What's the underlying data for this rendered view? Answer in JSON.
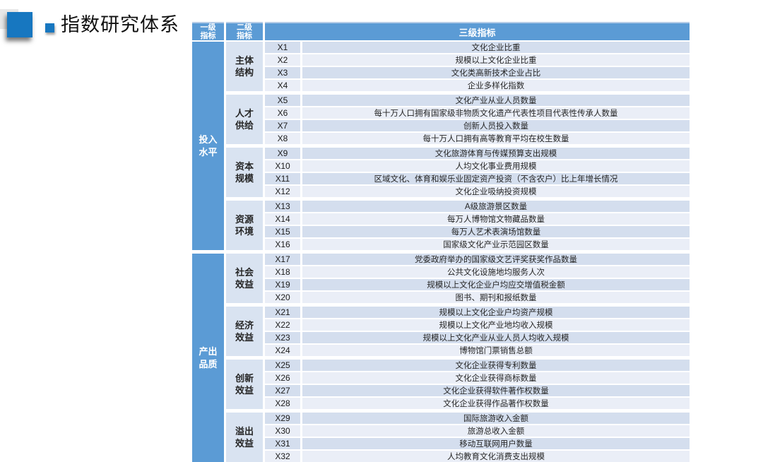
{
  "title": {
    "text": "指数研究体系"
  },
  "table": {
    "headers": [
      "一级\n指标",
      "二级\n指标",
      "三级指标"
    ],
    "sections": [
      {
        "level1": "投入\n水平",
        "groups": [
          {
            "level2": "主体\n结构",
            "items": [
              {
                "code": "X1",
                "name": "文化企业比重"
              },
              {
                "code": "X2",
                "name": "规模以上文化企业比重"
              },
              {
                "code": "X3",
                "name": "文化类高新技术企业占比"
              },
              {
                "code": "X4",
                "name": "企业多样化指数"
              }
            ]
          },
          {
            "level2": "人才\n供给",
            "items": [
              {
                "code": "X5",
                "name": "文化产业从业人员数量"
              },
              {
                "code": "X6",
                "name": "每十万人口拥有国家级非物质文化遗产代表性项目代表性传承人数量"
              },
              {
                "code": "X7",
                "name": "创新人员投入数量"
              },
              {
                "code": "X8",
                "name": "每十万人口拥有高等教育平均在校生数量"
              }
            ]
          },
          {
            "level2": "资本\n规模",
            "items": [
              {
                "code": "X9",
                "name": "文化旅游体育与传媒预算支出规模"
              },
              {
                "code": "X10",
                "name": "人均文化事业费用规模"
              },
              {
                "code": "X11",
                "name": "区域文化、体育和娱乐业固定资产投资（不含农户）比上年增长情况"
              },
              {
                "code": "X12",
                "name": "文化企业吸纳投资规模"
              }
            ]
          },
          {
            "level2": "资源\n环境",
            "items": [
              {
                "code": "X13",
                "name": "A级旅游景区数量"
              },
              {
                "code": "X14",
                "name": "每万人博物馆文物藏品数量"
              },
              {
                "code": "X15",
                "name": "每万人艺术表演场馆数量"
              },
              {
                "code": "X16",
                "name": "国家级文化产业示范园区数量"
              }
            ]
          }
        ]
      },
      {
        "level1": "产出\n品质",
        "groups": [
          {
            "level2": "社会\n效益",
            "items": [
              {
                "code": "X17",
                "name": "党委政府举办的国家级文艺评奖获奖作品数量"
              },
              {
                "code": "X18",
                "name": "公共文化设施地均服务人次"
              },
              {
                "code": "X19",
                "name": "规模以上文化企业户均应交增值税金额"
              },
              {
                "code": "X20",
                "name": "图书、期刊和报纸数量"
              }
            ]
          },
          {
            "level2": "经济\n效益",
            "items": [
              {
                "code": "X21",
                "name": "规模以上文化企业户均资产规模"
              },
              {
                "code": "X22",
                "name": "规模以上文化产业地均收入规模"
              },
              {
                "code": "X23",
                "name": "规模以上文化产业从业人员人均收入规模"
              },
              {
                "code": "X24",
                "name": "博物馆门票销售总额"
              }
            ]
          },
          {
            "level2": "创新\n效益",
            "items": [
              {
                "code": "X25",
                "name": "文化企业获得专利数量"
              },
              {
                "code": "X26",
                "name": "文化企业获得商标数量"
              },
              {
                "code": "X27",
                "name": "文化企业获得软件著作权数量"
              },
              {
                "code": "X28",
                "name": "文化企业获得作品著作权数量"
              }
            ]
          },
          {
            "level2": "溢出\n效益",
            "items": [
              {
                "code": "X29",
                "name": "国际旅游收入金额"
              },
              {
                "code": "X30",
                "name": "旅游总收入金额"
              },
              {
                "code": "X31",
                "name": "移动互联网用户数量"
              },
              {
                "code": "X32",
                "name": "人均教育文化消费支出规模"
              }
            ]
          }
        ]
      }
    ]
  },
  "colors": {
    "header_blue": "#5b9bd5",
    "level1_blue": "#5b9bd5",
    "level2_bg": "#d9e3f1",
    "row_dark": "#d4deee",
    "row_light": "#eaeef7",
    "text_dark": "#262626",
    "accent_square": "#1777c0",
    "gray_square": "#e8e8e8"
  }
}
